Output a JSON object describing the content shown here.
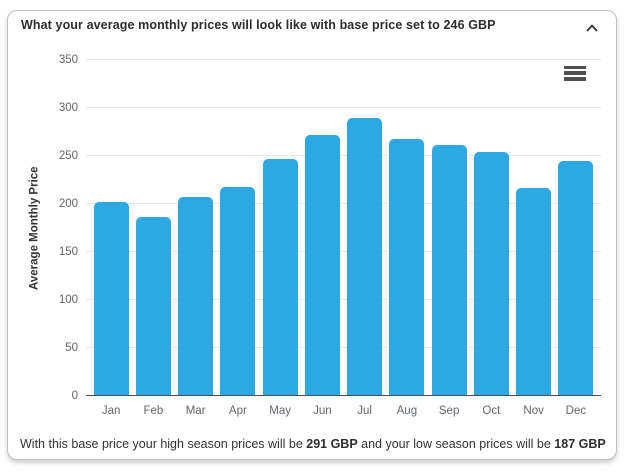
{
  "header": {
    "title": "What your average monthly prices will look like with base price set to 246 GBP"
  },
  "chart_data": {
    "type": "bar",
    "title": "",
    "categories": [
      "Jan",
      "Feb",
      "Mar",
      "Apr",
      "May",
      "Jun",
      "Jul",
      "Aug",
      "Sep",
      "Oct",
      "Nov",
      "Dec"
    ],
    "values": [
      202,
      186,
      207,
      217,
      247,
      272,
      289,
      267,
      261,
      254,
      216,
      245
    ],
    "xlabel": "",
    "ylabel": "Average Monthly Price",
    "ylim": [
      0,
      350
    ],
    "yticks": [
      0,
      50,
      100,
      150,
      200,
      250,
      300,
      350
    ],
    "grid": true,
    "legend": "none",
    "bar_color": "#2DA8E3"
  },
  "footer": {
    "part1": "With this base price your high season prices will be ",
    "high_value": "291 GBP",
    "part2": " and your low season prices will be ",
    "low_value": "187 GBP"
  },
  "icons": {
    "collapse": "chevron-up",
    "chart_menu": "hamburger-menu"
  },
  "colors": {
    "bar": "#2DA8E3",
    "gridline": "#e6e6e6",
    "axis_line": "#4d4d4d",
    "tick_label": "#666666",
    "header_text": "#2d2d2d",
    "footer_text": "#333333",
    "card_border": "#bfbfbf"
  }
}
